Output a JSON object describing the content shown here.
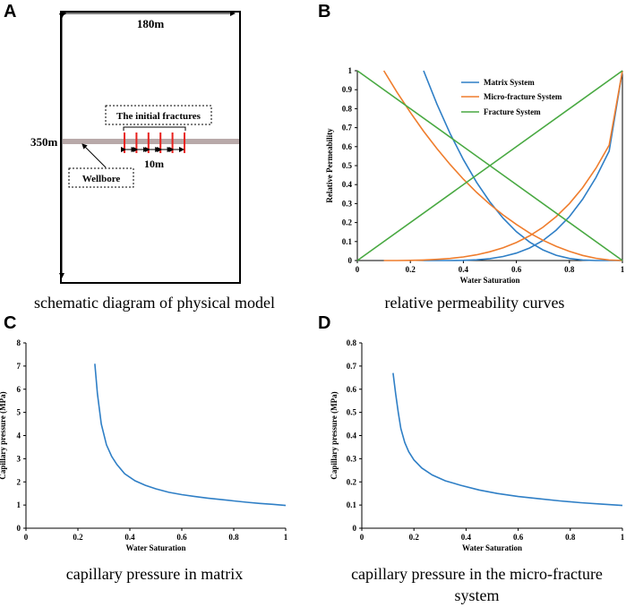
{
  "panels": {
    "a": {
      "letter": "A",
      "caption": "schematic diagram of physical model",
      "width_label": "180m",
      "height_label": "350m",
      "fracture_label": "The initial fractures",
      "spacing_label": "10m",
      "wellbore_label": "Wellbore",
      "fracture_count": 6,
      "colors": {
        "fracture": "#e8211e",
        "wellbore": "#b8a9a9"
      }
    },
    "b": {
      "letter": "B",
      "caption": "relative permeability curves"
    },
    "c": {
      "letter": "C",
      "caption": "capillary pressure in matrix"
    },
    "d": {
      "letter": "D",
      "caption": "capillary pressure in the micro-fracture system"
    }
  },
  "chart_data": [
    {
      "id": "b",
      "type": "line",
      "title": "",
      "xlabel": "Water Saturation",
      "ylabel": "Relative Permeability",
      "xlim": [
        0,
        1
      ],
      "ylim": [
        0,
        1
      ],
      "xticks": [
        0,
        0.2,
        0.4,
        0.6,
        0.8,
        1
      ],
      "xtick_labels": [
        "0",
        "0.2",
        "0.4",
        "0.6",
        "0.8",
        "1"
      ],
      "yticks": [
        0,
        0.1,
        0.2,
        0.3,
        0.4,
        0.5,
        0.6,
        0.7,
        0.8,
        0.9,
        1
      ],
      "ytick_labels": [
        "0",
        "0.1",
        "0.2",
        "0.3",
        "0.4",
        "0.5",
        "0.6",
        "0.7",
        "0.8",
        "0.9",
        "1"
      ],
      "legend_position": "top-right",
      "series": [
        {
          "name": "Matrix System",
          "color": "#2f7fc6",
          "kind": "oil",
          "x": [
            0.25,
            0.3,
            0.35,
            0.4,
            0.45,
            0.5,
            0.55,
            0.6,
            0.65,
            0.7,
            0.75,
            0.8,
            0.85,
            0.9,
            0.95,
            1.0
          ],
          "y": [
            1.0,
            0.825,
            0.669,
            0.532,
            0.412,
            0.309,
            0.223,
            0.152,
            0.097,
            0.056,
            0.028,
            0.011,
            0.003,
            0.0,
            0.0,
            0.0
          ]
        },
        {
          "name": "Matrix System",
          "color": "#2f7fc6",
          "kind": "water",
          "x": [
            0.25,
            0.3,
            0.35,
            0.4,
            0.45,
            0.5,
            0.55,
            0.6,
            0.65,
            0.7,
            0.75,
            0.8,
            0.85,
            0.9,
            0.95,
            1.0
          ],
          "y": [
            0.0,
            0.0,
            0.0,
            0.001,
            0.004,
            0.01,
            0.021,
            0.039,
            0.066,
            0.105,
            0.16,
            0.231,
            0.323,
            0.437,
            0.577,
            1.0
          ]
        },
        {
          "name": "Micro-fracture System",
          "color": "#ef7d2d",
          "kind": "oil",
          "x": [
            0.1,
            0.15,
            0.2,
            0.25,
            0.3,
            0.35,
            0.4,
            0.45,
            0.5,
            0.55,
            0.6,
            0.65,
            0.7,
            0.75,
            0.8,
            0.85,
            0.9,
            0.95,
            1.0
          ],
          "y": [
            1.0,
            0.886,
            0.78,
            0.681,
            0.59,
            0.506,
            0.429,
            0.359,
            0.296,
            0.24,
            0.19,
            0.145,
            0.107,
            0.075,
            0.048,
            0.027,
            0.012,
            0.003,
            0.0
          ]
        },
        {
          "name": "Micro-fracture System",
          "color": "#ef7d2d",
          "kind": "water",
          "x": [
            0.1,
            0.15,
            0.2,
            0.25,
            0.3,
            0.35,
            0.4,
            0.45,
            0.5,
            0.55,
            0.6,
            0.65,
            0.7,
            0.75,
            0.8,
            0.85,
            0.9,
            0.95,
            1.0
          ],
          "y": [
            0.0,
            0.0,
            0.001,
            0.003,
            0.006,
            0.011,
            0.019,
            0.03,
            0.046,
            0.067,
            0.095,
            0.13,
            0.175,
            0.231,
            0.3,
            0.384,
            0.486,
            0.608,
            1.0
          ]
        },
        {
          "name": "Fracture System",
          "color": "#49a942",
          "kind": "oil",
          "x": [
            0,
            1
          ],
          "y": [
            1,
            0
          ]
        },
        {
          "name": "Fracture System",
          "color": "#49a942",
          "kind": "water",
          "x": [
            0,
            1
          ],
          "y": [
            0,
            1
          ]
        }
      ]
    },
    {
      "id": "c",
      "type": "line",
      "xlabel": "Water Saturation",
      "ylabel": "Capillary pressure (MPa)",
      "xlim": [
        0,
        1
      ],
      "ylim": [
        0,
        8
      ],
      "xticks": [
        0,
        0.2,
        0.4,
        0.6,
        0.8,
        1
      ],
      "xtick_labels": [
        "0",
        "0.2",
        "0.4",
        "0.6",
        "0.8",
        "1"
      ],
      "yticks": [
        0,
        1,
        2,
        3,
        4,
        5,
        6,
        7,
        8
      ],
      "ytick_labels": [
        "0",
        "1",
        "2",
        "3",
        "4",
        "5",
        "6",
        "7",
        "8"
      ],
      "series": [
        {
          "name": "Matrix",
          "color": "#2f7fc6",
          "x": [
            0.265,
            0.275,
            0.29,
            0.31,
            0.33,
            0.35,
            0.38,
            0.42,
            0.46,
            0.5,
            0.55,
            0.6,
            0.65,
            0.7,
            0.75,
            0.8,
            0.85,
            0.9,
            0.95,
            1.0
          ],
          "y": [
            7.1,
            5.8,
            4.5,
            3.6,
            3.1,
            2.75,
            2.35,
            2.05,
            1.85,
            1.7,
            1.55,
            1.45,
            1.37,
            1.3,
            1.24,
            1.18,
            1.12,
            1.07,
            1.03,
            0.98
          ]
        }
      ]
    },
    {
      "id": "d",
      "type": "line",
      "xlabel": "Water Saturation",
      "ylabel": "Capillary pressure (MPa)",
      "xlim": [
        0,
        1
      ],
      "ylim": [
        0,
        0.8
      ],
      "xticks": [
        0,
        0.2,
        0.4,
        0.6,
        0.8,
        1
      ],
      "xtick_labels": [
        "0",
        "0.2",
        "0.4",
        "0.6",
        "0.8",
        "1"
      ],
      "yticks": [
        0,
        0.1,
        0.2,
        0.3,
        0.4,
        0.5,
        0.6,
        0.7,
        0.8
      ],
      "ytick_labels": [
        "0",
        "0.1",
        "0.2",
        "0.3",
        "0.4",
        "0.5",
        "0.6",
        "0.7",
        "0.8"
      ],
      "series": [
        {
          "name": "Micro-fracture",
          "color": "#2f7fc6",
          "x": [
            0.12,
            0.13,
            0.14,
            0.15,
            0.165,
            0.18,
            0.2,
            0.23,
            0.27,
            0.32,
            0.38,
            0.45,
            0.52,
            0.6,
            0.68,
            0.76,
            0.84,
            0.92,
            1.0
          ],
          "y": [
            0.67,
            0.58,
            0.5,
            0.43,
            0.37,
            0.33,
            0.295,
            0.26,
            0.23,
            0.205,
            0.185,
            0.165,
            0.15,
            0.137,
            0.127,
            0.118,
            0.11,
            0.104,
            0.098
          ]
        }
      ]
    }
  ]
}
